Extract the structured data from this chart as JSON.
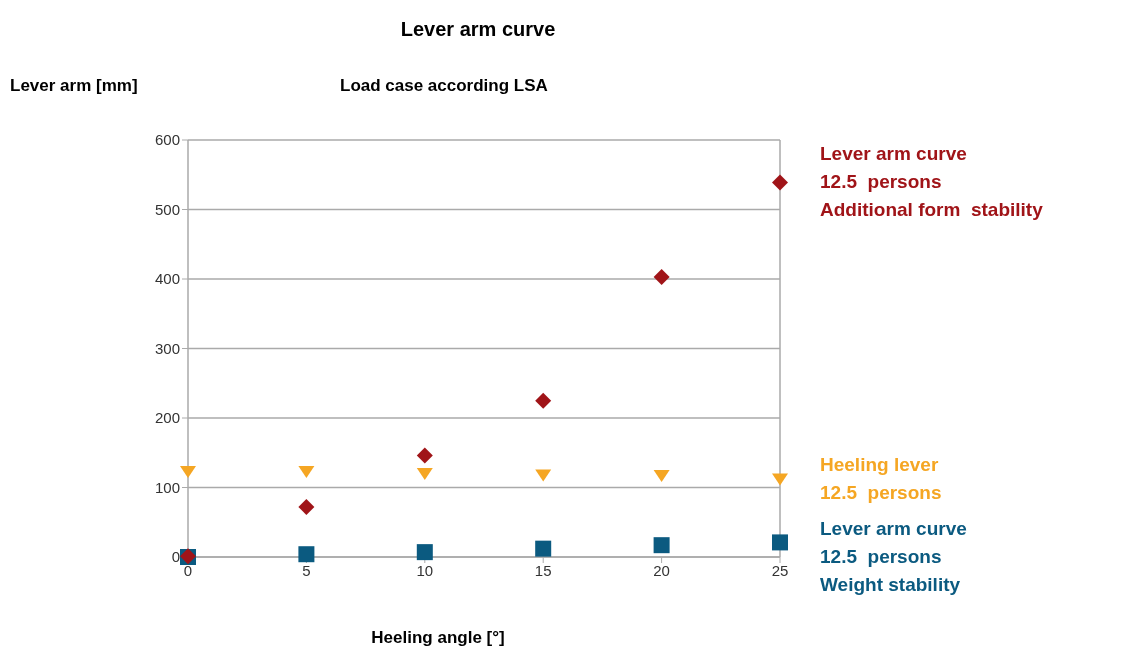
{
  "chart_data": {
    "type": "scatter",
    "title": "Lever arm curve",
    "subtitle": "Load case according LSA",
    "xlabel": "Heeling angle [°]",
    "ylabel": "Lever arm [mm]",
    "x": [
      0,
      5,
      10,
      15,
      20,
      25
    ],
    "series": [
      {
        "name": "Lever arm curve\n12.5  persons\nAdditional form  stability",
        "color": "#a01418",
        "marker": "diamond",
        "values": [
          1,
          72,
          146,
          225,
          403,
          539
        ]
      },
      {
        "name": "Heeling lever\n12.5  persons",
        "color": "#f5a623",
        "marker": "triangle",
        "values": [
          123,
          123,
          120,
          118,
          117,
          112
        ]
      },
      {
        "name": "Lever arm curve\n12.5  persons\nWeight stability",
        "color": "#0b5a80",
        "marker": "square",
        "values": [
          0,
          4,
          7,
          12,
          17,
          21
        ]
      }
    ],
    "xlim": [
      0,
      25
    ],
    "xticks": [
      0,
      5,
      10,
      15,
      20,
      25
    ],
    "ylim": [
      0,
      600
    ],
    "yticks": [
      0,
      100,
      200,
      300,
      400,
      500,
      600
    ],
    "grid": "y",
    "legend": "right"
  }
}
